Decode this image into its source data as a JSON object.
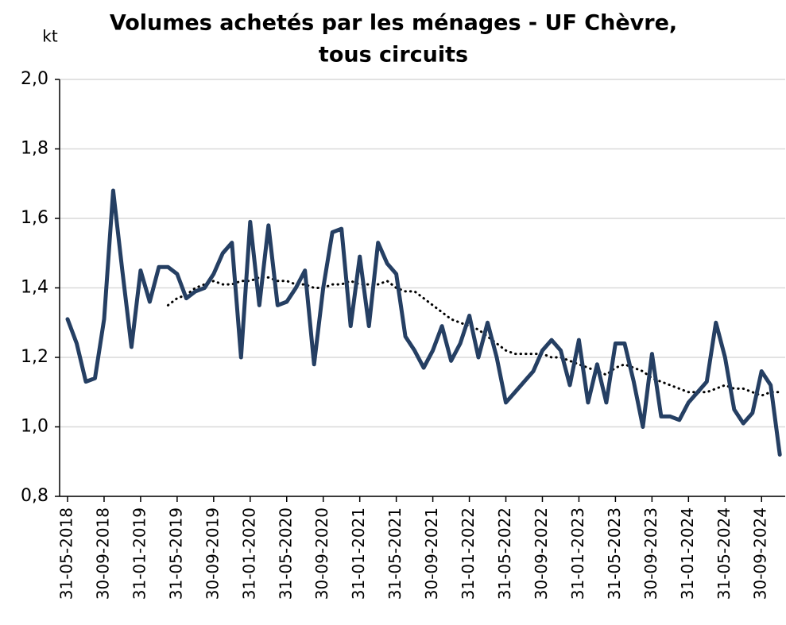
{
  "chart_data": {
    "type": "line",
    "title": [
      "Volumes achetés par les ménages - UF Chèvre,",
      "tous circuits"
    ],
    "y_label": "kt",
    "categories": [
      "31-05-2018",
      null,
      null,
      null,
      "30-09-2018",
      null,
      null,
      null,
      "31-01-2019",
      null,
      null,
      null,
      "31-05-2019",
      null,
      null,
      null,
      "30-09-2019",
      null,
      null,
      null,
      "31-01-2020",
      null,
      null,
      null,
      "31-05-2020",
      null,
      null,
      null,
      "30-09-2020",
      null,
      null,
      null,
      "31-01-2021",
      null,
      null,
      null,
      "31-05-2021",
      null,
      null,
      null,
      "30-09-2021",
      null,
      null,
      null,
      "31-01-2022",
      null,
      null,
      null,
      "31-05-2022",
      null,
      null,
      null,
      "30-09-2022",
      null,
      null,
      null,
      "31-01-2023",
      null,
      null,
      null,
      "31-05-2023",
      null,
      null,
      null,
      "30-09-2023",
      null,
      null,
      null,
      "31-01-2024",
      null,
      null,
      null,
      "31-05-2024",
      null,
      null,
      null,
      "30-09-2024",
      null,
      null
    ],
    "series": [
      {
        "color": "#253f63",
        "style": "solid",
        "values": [
          1.31,
          1.24,
          1.13,
          1.14,
          1.31,
          1.68,
          1.45,
          1.23,
          1.45,
          1.36,
          1.46,
          1.46,
          1.44,
          1.37,
          1.39,
          1.4,
          1.44,
          1.5,
          1.53,
          1.2,
          1.59,
          1.35,
          1.58,
          1.35,
          1.36,
          1.4,
          1.45,
          1.18,
          1.4,
          1.56,
          1.57,
          1.29,
          1.49,
          1.29,
          1.53,
          1.47,
          1.44,
          1.26,
          1.22,
          1.17,
          1.22,
          1.29,
          1.19,
          1.24,
          1.32,
          1.2,
          1.3,
          1.2,
          1.07,
          1.1,
          1.13,
          1.16,
          1.22,
          1.25,
          1.22,
          1.12,
          1.25,
          1.07,
          1.18,
          1.07,
          1.24,
          1.24,
          1.13,
          1.0,
          1.21,
          1.03,
          1.03,
          1.02,
          1.07,
          1.1,
          1.13,
          1.3,
          1.2,
          1.05,
          1.01,
          1.04,
          1.16,
          1.12,
          0.92
        ]
      },
      {
        "color": "#000000",
        "style": "dotted",
        "values": [
          null,
          null,
          null,
          null,
          null,
          null,
          null,
          null,
          null,
          null,
          null,
          1.35,
          1.37,
          1.38,
          1.4,
          1.41,
          1.42,
          1.41,
          1.41,
          1.42,
          1.42,
          1.43,
          1.43,
          1.42,
          1.42,
          1.41,
          1.41,
          1.4,
          1.4,
          1.41,
          1.41,
          1.42,
          1.41,
          1.41,
          1.41,
          1.42,
          1.4,
          1.39,
          1.39,
          1.37,
          1.35,
          1.33,
          1.31,
          1.3,
          1.29,
          1.28,
          1.26,
          1.24,
          1.22,
          1.21,
          1.21,
          1.21,
          1.21,
          1.2,
          1.2,
          1.19,
          1.18,
          1.17,
          1.16,
          1.15,
          1.17,
          1.18,
          1.17,
          1.16,
          1.14,
          1.13,
          1.12,
          1.11,
          1.1,
          1.1,
          1.1,
          1.11,
          1.12,
          1.11,
          1.11,
          1.1,
          1.09,
          1.1,
          1.1
        ]
      }
    ],
    "ylim": [
      0.8,
      2.0
    ],
    "yticks": [
      {
        "value": 0.8,
        "label": "0,8"
      },
      {
        "value": 1.0,
        "label": "1,0"
      },
      {
        "value": 1.2,
        "label": "1,2"
      },
      {
        "value": 1.4,
        "label": "1,4"
      },
      {
        "value": 1.6,
        "label": "1,6"
      },
      {
        "value": 1.8,
        "label": "1,8"
      },
      {
        "value": 2.0,
        "label": "2,0"
      }
    ],
    "grid": true
  }
}
